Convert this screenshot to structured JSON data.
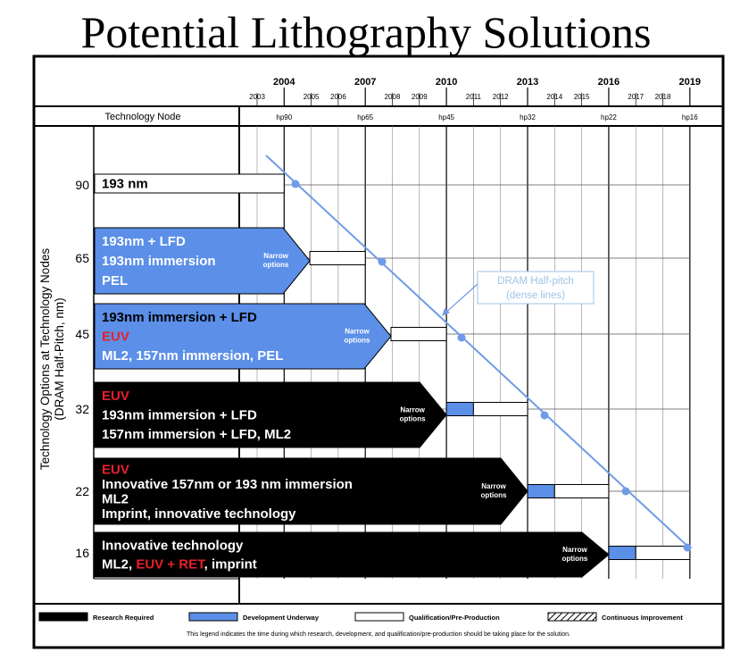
{
  "title": "Potential Lithography Solutions",
  "header": {
    "major_years": [
      "2004",
      "2007",
      "2010",
      "2013",
      "2016",
      "2019"
    ],
    "minor_years": [
      "2003",
      "2005",
      "2006",
      "2008",
      "2009",
      "2011",
      "2012",
      "2014",
      "2015",
      "2017",
      "2018"
    ],
    "tech_node_label": "Technology Node",
    "hp_labels": [
      "hp90",
      "hp65",
      "hp45",
      "hp32",
      "hp22",
      "hp16"
    ]
  },
  "y_axis": {
    "label_line1": "Technology Options at Technology Nodes",
    "label_line2": "(DRAM Half-Pitch, nm)",
    "nodes": [
      "90",
      "65",
      "45",
      "32",
      "22",
      "16"
    ]
  },
  "rows": [
    {
      "node": "90",
      "color": "white",
      "lines": [
        {
          "parts": [
            {
              "t": "193 nm",
              "c": "black"
            }
          ]
        }
      ],
      "narrow": ""
    },
    {
      "node": "65",
      "color": "blue",
      "lines": [
        {
          "parts": [
            {
              "t": "193nm + LFD",
              "c": "white"
            }
          ]
        },
        {
          "parts": [
            {
              "t": "193nm immersion",
              "c": "white"
            }
          ]
        },
        {
          "parts": [
            {
              "t": "PEL",
              "c": "white"
            }
          ]
        }
      ],
      "narrow": "Narrow options"
    },
    {
      "node": "45",
      "color": "blue",
      "lines": [
        {
          "parts": [
            {
              "t": "193nm immersion + LFD",
              "c": "black"
            }
          ]
        },
        {
          "parts": [
            {
              "t": "EUV",
              "c": "red"
            }
          ]
        },
        {
          "parts": [
            {
              "t": "ML2, 157nm immersion, PEL",
              "c": "white"
            }
          ]
        }
      ],
      "narrow": "Narrow options"
    },
    {
      "node": "32",
      "color": "black",
      "lines": [
        {
          "parts": [
            {
              "t": "EUV",
              "c": "red"
            }
          ]
        },
        {
          "parts": [
            {
              "t": "193nm immersion + LFD",
              "c": "white"
            }
          ]
        },
        {
          "parts": [
            {
              "t": "157nm immersion + LFD, ML2",
              "c": "white"
            }
          ]
        }
      ],
      "narrow": "Narrow options"
    },
    {
      "node": "22",
      "color": "black",
      "lines": [
        {
          "parts": [
            {
              "t": "EUV",
              "c": "red"
            }
          ]
        },
        {
          "parts": [
            {
              "t": "Innovative 157nm or 193 nm immersion",
              "c": "white"
            }
          ]
        },
        {
          "parts": [
            {
              "t": "ML2",
              "c": "white"
            }
          ]
        },
        {
          "parts": [
            {
              "t": "Imprint, innovative technology",
              "c": "white"
            }
          ]
        }
      ],
      "narrow": "Narrow options"
    },
    {
      "node": "16",
      "color": "black",
      "lines": [
        {
          "parts": [
            {
              "t": "Innovative technology",
              "c": "white"
            }
          ]
        },
        {
          "parts": [
            {
              "t": "ML2, ",
              "c": "white"
            },
            {
              "t": "EUV + RET",
              "c": "red"
            },
            {
              "t": ", imprint",
              "c": "white"
            }
          ]
        }
      ],
      "narrow": "Narrow options"
    }
  ],
  "annotation": {
    "line1": "DRAM Half-pitch",
    "line2": "(dense lines)"
  },
  "legend": {
    "items": [
      {
        "label": "Research Required",
        "fill": "#000000"
      },
      {
        "label": "Development Underway",
        "fill": "#5b8fe8"
      },
      {
        "label": "Qualification/Pre-Production",
        "fill": "#ffffff"
      },
      {
        "label": "Continuous Improvement",
        "fill": "hatch"
      }
    ],
    "note": "This legend indicates the time during which research, development, and qualification/pre-production should be taking place for the solution."
  },
  "colors": {
    "blue": "#5b8fe8",
    "line": "#6f9be8",
    "red": "#e8202a",
    "annotation": "#9ec4e6"
  }
}
